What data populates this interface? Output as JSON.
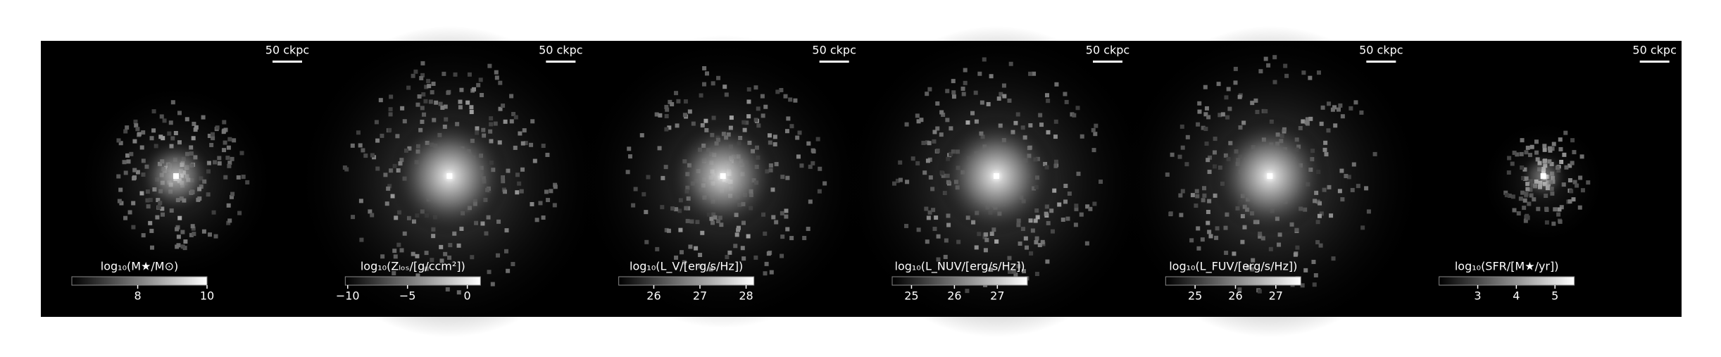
{
  "panels": [
    {
      "scalebar": "50 ckpc",
      "colorbar": {
        "label": "log₁₀(M★/M⊙)",
        "lim": [
          6.1,
          10
        ],
        "ticks": [
          8,
          10
        ]
      }
    },
    {
      "scalebar": "50 ckpc",
      "colorbar": {
        "label": "log₁₀(Zₗₒₛ/[g/ccm²])",
        "lim": [
          -10.2,
          1.1
        ],
        "ticks": [
          {
            "value": -10,
            "label": "−10"
          },
          {
            "value": -5,
            "label": "−5"
          },
          0
        ]
      }
    },
    {
      "scalebar": "50 ckpc",
      "colorbar": {
        "label": "log₁₀(L_V/[erg/s/Hz])",
        "lim": [
          25.24,
          28.17
        ],
        "ticks": [
          26,
          27,
          28
        ]
      }
    },
    {
      "scalebar": "50 ckpc",
      "colorbar": {
        "label": "log₁₀(L_NUV/[erg/s/Hz])",
        "lim": [
          24.55,
          27.7
        ],
        "ticks": [
          25,
          26,
          27
        ]
      }
    },
    {
      "scalebar": "50 ckpc",
      "colorbar": {
        "label": "log₁₀(L_FUV/[erg/s/Hz])",
        "lim": [
          24.27,
          27.62
        ],
        "ticks": [
          25,
          26,
          27
        ]
      }
    },
    {
      "scalebar": "50 ckpc",
      "colorbar": {
        "label": "log₁₀(SFR/[M★/yr])",
        "lim": [
          2.0,
          5.5
        ],
        "ticks": [
          3,
          4,
          5
        ]
      }
    }
  ]
}
